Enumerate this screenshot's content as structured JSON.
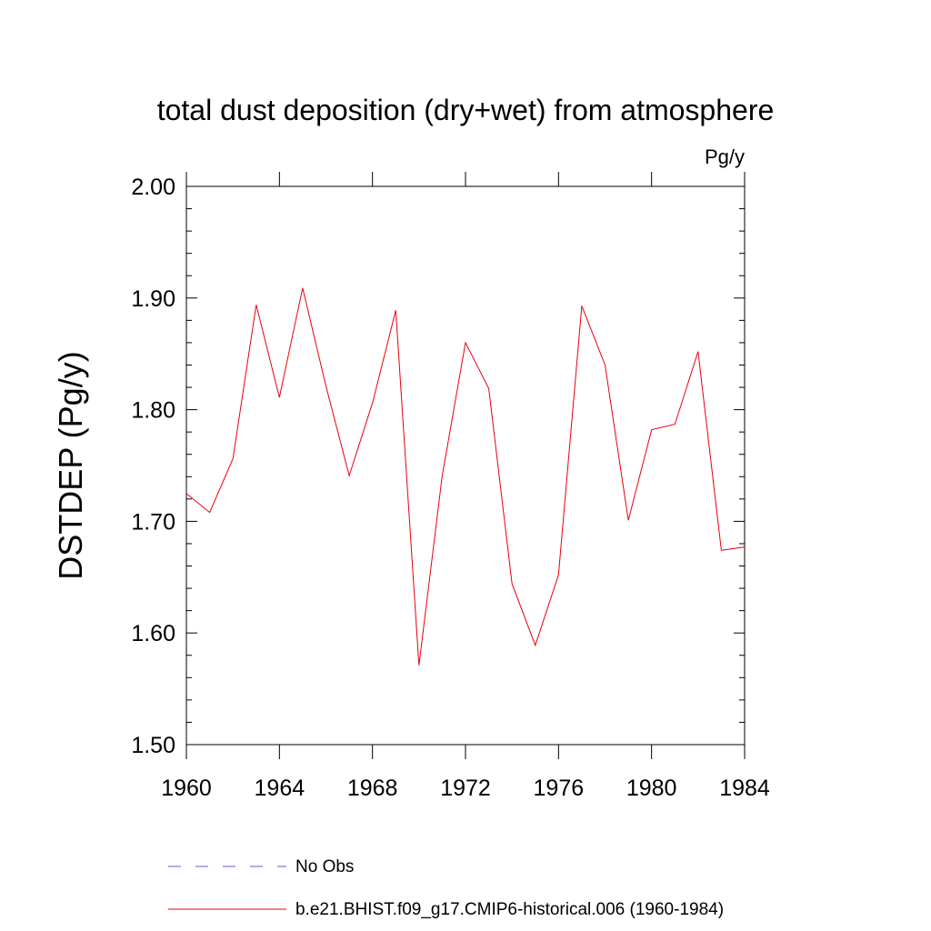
{
  "chart_data": {
    "type": "line",
    "title": "total dust deposition (dry+wet) from atmosphere",
    "units_label": "Pg/y",
    "ylabel": "DSTDEP  (Pg/y)",
    "xlabel": "",
    "xlim": [
      1960,
      1984
    ],
    "ylim": [
      1.5,
      2.0
    ],
    "x_ticks": [
      "1960",
      "1964",
      "1968",
      "1972",
      "1976",
      "1980",
      "1984"
    ],
    "y_ticks": [
      "1.50",
      "1.60",
      "1.70",
      "1.80",
      "1.90",
      "2.00"
    ],
    "grid": false,
    "legend_position": "bottom",
    "series": [
      {
        "name": "b.e21.BHIST.f09_g17.CMIP6-historical.006 (1960-1984)",
        "color": "#e8000b",
        "style": "solid",
        "x": [
          1960,
          1961,
          1962,
          1963,
          1964,
          1965,
          1966,
          1967,
          1968,
          1969,
          1970,
          1971,
          1972,
          1973,
          1974,
          1975,
          1976,
          1977,
          1978,
          1979,
          1980,
          1981,
          1982,
          1983,
          1984
        ],
        "values": [
          1.725,
          1.708,
          1.756,
          1.894,
          1.811,
          1.909,
          1.821,
          1.741,
          1.806,
          1.889,
          1.571,
          1.741,
          1.86,
          1.819,
          1.644,
          1.589,
          1.652,
          1.893,
          1.84,
          1.701,
          1.782,
          1.787,
          1.852,
          1.674,
          1.677
        ]
      }
    ],
    "legend": [
      {
        "label": "No Obs",
        "color": "#6a5acd",
        "style": "dashed"
      },
      {
        "label": "b.e21.BHIST.f09_g17.CMIP6-historical.006 (1960-1984)",
        "color": "#e8000b",
        "style": "solid"
      }
    ]
  }
}
